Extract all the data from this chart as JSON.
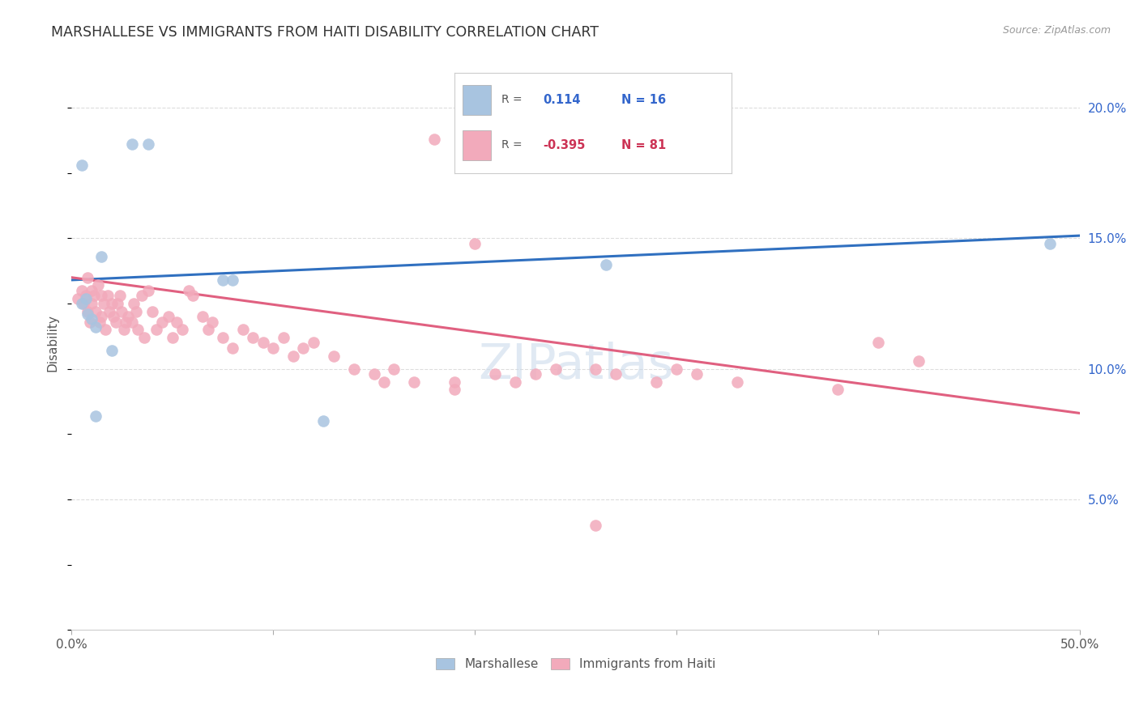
{
  "title": "MARSHALLESE VS IMMIGRANTS FROM HAITI DISABILITY CORRELATION CHART",
  "source": "Source: ZipAtlas.com",
  "ylabel": "Disability",
  "xlim": [
    0.0,
    0.5
  ],
  "ylim": [
    0.0,
    0.22
  ],
  "yticks": [
    0.05,
    0.1,
    0.15,
    0.2
  ],
  "ytick_labels": [
    "5.0%",
    "10.0%",
    "15.0%",
    "20.0%"
  ],
  "xticks": [
    0.0,
    0.1,
    0.2,
    0.3,
    0.4,
    0.5
  ],
  "xtick_labels": [
    "0.0%",
    "",
    "",
    "",
    "",
    "50.0%"
  ],
  "blue_R": 0.114,
  "blue_N": 16,
  "pink_R": -0.395,
  "pink_N": 81,
  "blue_color": "#a8c4e0",
  "pink_color": "#f2aabb",
  "blue_line_color": "#3070c0",
  "pink_line_color": "#e06080",
  "blue_line_x0": 0.0,
  "blue_line_x1": 0.5,
  "blue_line_y0": 0.134,
  "blue_line_y1": 0.151,
  "pink_line_x0": 0.0,
  "pink_line_x1": 0.5,
  "pink_line_y0": 0.135,
  "pink_line_y1": 0.083,
  "blue_x": [
    0.005,
    0.005,
    0.007,
    0.008,
    0.01,
    0.012,
    0.015,
    0.03,
    0.038,
    0.075,
    0.08,
    0.012,
    0.125,
    0.265,
    0.485,
    0.02
  ],
  "blue_y": [
    0.178,
    0.125,
    0.127,
    0.121,
    0.119,
    0.116,
    0.143,
    0.186,
    0.186,
    0.134,
    0.134,
    0.082,
    0.08,
    0.14,
    0.148,
    0.107
  ],
  "pink_x": [
    0.003,
    0.005,
    0.006,
    0.007,
    0.008,
    0.008,
    0.009,
    0.01,
    0.01,
    0.011,
    0.012,
    0.013,
    0.014,
    0.015,
    0.015,
    0.016,
    0.017,
    0.018,
    0.019,
    0.02,
    0.021,
    0.022,
    0.023,
    0.024,
    0.025,
    0.026,
    0.027,
    0.028,
    0.03,
    0.031,
    0.032,
    0.033,
    0.035,
    0.036,
    0.038,
    0.04,
    0.042,
    0.045,
    0.048,
    0.05,
    0.052,
    0.055,
    0.058,
    0.06,
    0.065,
    0.068,
    0.07,
    0.075,
    0.08,
    0.085,
    0.09,
    0.095,
    0.1,
    0.105,
    0.11,
    0.115,
    0.12,
    0.13,
    0.14,
    0.15,
    0.155,
    0.16,
    0.17,
    0.18,
    0.19,
    0.2,
    0.21,
    0.22,
    0.23,
    0.24,
    0.26,
    0.27,
    0.29,
    0.3,
    0.31,
    0.33,
    0.19,
    0.26,
    0.42,
    0.4,
    0.38
  ],
  "pink_y": [
    0.127,
    0.13,
    0.125,
    0.128,
    0.122,
    0.135,
    0.118,
    0.13,
    0.125,
    0.128,
    0.122,
    0.132,
    0.118,
    0.128,
    0.12,
    0.125,
    0.115,
    0.128,
    0.122,
    0.125,
    0.12,
    0.118,
    0.125,
    0.128,
    0.122,
    0.115,
    0.118,
    0.12,
    0.118,
    0.125,
    0.122,
    0.115,
    0.128,
    0.112,
    0.13,
    0.122,
    0.115,
    0.118,
    0.12,
    0.112,
    0.118,
    0.115,
    0.13,
    0.128,
    0.12,
    0.115,
    0.118,
    0.112,
    0.108,
    0.115,
    0.112,
    0.11,
    0.108,
    0.112,
    0.105,
    0.108,
    0.11,
    0.105,
    0.1,
    0.098,
    0.095,
    0.1,
    0.095,
    0.188,
    0.095,
    0.148,
    0.098,
    0.095,
    0.098,
    0.1,
    0.1,
    0.098,
    0.095,
    0.1,
    0.098,
    0.095,
    0.092,
    0.04,
    0.103,
    0.11,
    0.092
  ]
}
